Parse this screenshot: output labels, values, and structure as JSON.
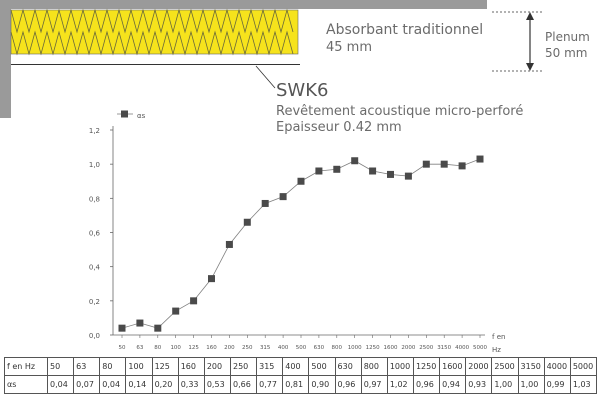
{
  "labels": {
    "absorbant_line1": "Absorbant traditionnel",
    "absorbant_line2": "45 mm",
    "plenum_line1": "Plenum",
    "plenum_line2": "50 mm",
    "product_name": "SWK6",
    "product_desc": "Revêtement acoustique micro-perforé",
    "product_thickness": "Epaisseur 0.42 mm"
  },
  "colors": {
    "wall": "#9a9a9a",
    "insulation": "#f6e31c",
    "marker": "#4a4a4a",
    "line": "#808080"
  },
  "chart_data": {
    "type": "line",
    "legend": "αs",
    "x_axis_label_line1": "f en",
    "x_axis_label_line2": "Hz",
    "categories": [
      "50",
      "63",
      "80",
      "100",
      "125",
      "160",
      "200",
      "250",
      "315",
      "400",
      "500",
      "630",
      "800",
      "1000",
      "1250",
      "1600",
      "2000",
      "2500",
      "3150",
      "4000",
      "5000"
    ],
    "values": [
      0.04,
      0.07,
      0.04,
      0.14,
      0.2,
      0.33,
      0.53,
      0.66,
      0.77,
      0.81,
      0.9,
      0.96,
      0.97,
      1.02,
      0.96,
      0.94,
      0.93,
      1.0,
      1.0,
      0.99,
      1.03
    ],
    "ylim": [
      0,
      1.2
    ],
    "yticks": [
      "0,0",
      "0,2",
      "0,4",
      "0,6",
      "0,8",
      "1,0",
      "1,2"
    ]
  },
  "table": {
    "row1_header": "f en Hz",
    "row2_header": "αs",
    "row1": [
      "50",
      "63",
      "80",
      "100",
      "125",
      "160",
      "200",
      "250",
      "315",
      "400",
      "500",
      "630",
      "800",
      "1000",
      "1250",
      "1600",
      "2000",
      "2500",
      "3150",
      "4000",
      "5000"
    ],
    "row2": [
      "0,04",
      "0,07",
      "0,04",
      "0,14",
      "0,20",
      "0,33",
      "0,53",
      "0,66",
      "0,77",
      "0,81",
      "0,90",
      "0,96",
      "0,97",
      "1,02",
      "0,96",
      "0,94",
      "0,93",
      "1,00",
      "1,00",
      "0,99",
      "1,03"
    ]
  }
}
